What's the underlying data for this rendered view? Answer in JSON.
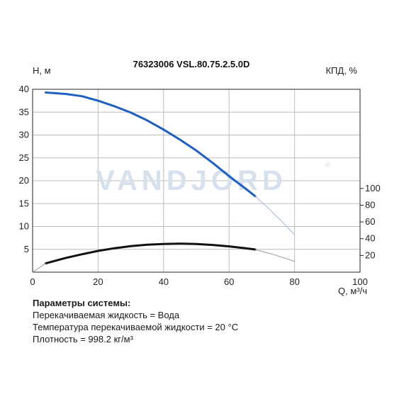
{
  "chart_data": {
    "type": "line",
    "title": "76323006 VSL.80.75.2.5.0D",
    "watermark": "VANDJORD",
    "watermark_mark": "®",
    "xlabel": "Q, м³/ч",
    "ylabel_left": "H, м",
    "ylabel_right": "КПД, %",
    "xlim": [
      0,
      100
    ],
    "ylim_left": [
      0,
      40
    ],
    "ylim_right": [
      0,
      100
    ],
    "x_ticks": [
      "0",
      "20",
      "40",
      "60",
      "80",
      "100"
    ],
    "y_left_ticks": [
      "5",
      "10",
      "15",
      "20",
      "25",
      "30",
      "35",
      "40"
    ],
    "y_right_ticks": [
      "20",
      "40",
      "60",
      "80",
      "100"
    ],
    "grid": true,
    "colors": {
      "head": "#1f5fbf",
      "head_ext": "#9ab8e0",
      "efficiency": "#111111",
      "efficiency_ext": "#999999"
    },
    "series": [
      {
        "axis": "left",
        "style": "solid",
        "x": [
          4,
          10,
          15,
          20,
          25,
          30,
          35,
          40,
          45,
          50,
          55,
          60,
          65,
          68
        ],
        "y": [
          39.3,
          39.0,
          38.5,
          37.5,
          36.3,
          34.9,
          33.2,
          31.2,
          29.0,
          26.6,
          23.9,
          21.0,
          18.3,
          16.6
        ]
      },
      {
        "axis": "left",
        "style": "extension",
        "x": [
          68,
          72,
          76,
          80
        ],
        "y": [
          16.6,
          14.0,
          11.2,
          8.2
        ]
      },
      {
        "axis": "right",
        "style": "solid",
        "x": [
          4,
          10,
          15,
          20,
          25,
          30,
          35,
          40,
          45,
          50,
          55,
          60,
          65,
          68
        ],
        "y": [
          10.5,
          16.8,
          21.3,
          25.4,
          28.6,
          31.1,
          32.8,
          33.7,
          34.0,
          33.6,
          32.5,
          30.8,
          28.6,
          27.1
        ]
      },
      {
        "axis": "right",
        "style": "extension",
        "x": [
          0,
          4
        ],
        "y": [
          0,
          10.5
        ]
      },
      {
        "axis": "right",
        "style": "extension",
        "x": [
          68,
          74,
          80
        ],
        "y": [
          27.1,
          20.6,
          13.0
        ]
      }
    ]
  },
  "parameters": {
    "title": "Параметры системы:",
    "lines": [
      "Перекачиваемая жидкость = Вода",
      "Температура перекачиваемой жидкости = 20 °C",
      "Плотность = 998.2 кг/м³"
    ]
  }
}
